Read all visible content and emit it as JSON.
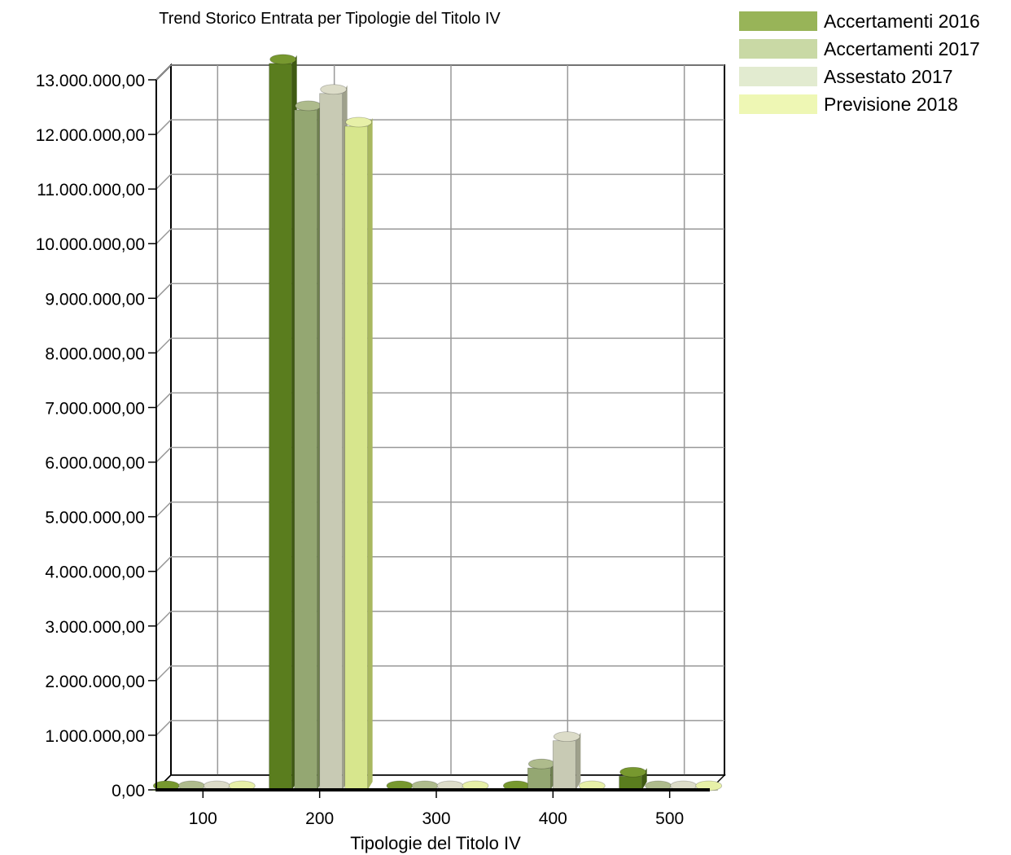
{
  "chart_data": {
    "type": "bar",
    "title": "Trend Storico Entrata per Tipologie del Titolo IV",
    "xlabel": "Tipologie del Titolo IV",
    "ylabel": "",
    "categories": [
      "100",
      "200",
      "300",
      "400",
      "500"
    ],
    "ylim": [
      0,
      13000000
    ],
    "yticks": [
      "0,00",
      "1.000.000,00",
      "2.000.000,00",
      "3.000.000,00",
      "4.000.000,00",
      "5.000.000,00",
      "6.000.000,00",
      "7.000.000,00",
      "8.000.000,00",
      "9.000.000,00",
      "10.000.000,00",
      "11.000.000,00",
      "12.000.000,00",
      "13.000.000,00"
    ],
    "series": [
      {
        "name": "Accertamenti 2016",
        "values": [
          0,
          13300000,
          0,
          0,
          250000
        ]
      },
      {
        "name": "Accertamenti 2017",
        "values": [
          0,
          12450000,
          0,
          400000,
          0
        ]
      },
      {
        "name": "Assestato 2017",
        "values": [
          0,
          12750000,
          0,
          900000,
          0
        ]
      },
      {
        "name": "Previsione 2018",
        "values": [
          0,
          12150000,
          0,
          0,
          0
        ]
      }
    ],
    "grid": true,
    "legend_position": "top-right"
  },
  "colors": {
    "series": [
      "#98b458",
      "#c9d9a5",
      "#e2ebd0",
      "#eef7b4"
    ],
    "bar_fronts": [
      "#5a7d1e",
      "#94a772",
      "#c8cab4",
      "#d7e68d"
    ],
    "bar_sides": [
      "#3f5a12",
      "#6f8150",
      "#9fa18c",
      "#a9b860"
    ],
    "bar_tops": [
      "#77982f",
      "#aebb8c",
      "#dcdcc8",
      "#e7f0a8"
    ]
  }
}
